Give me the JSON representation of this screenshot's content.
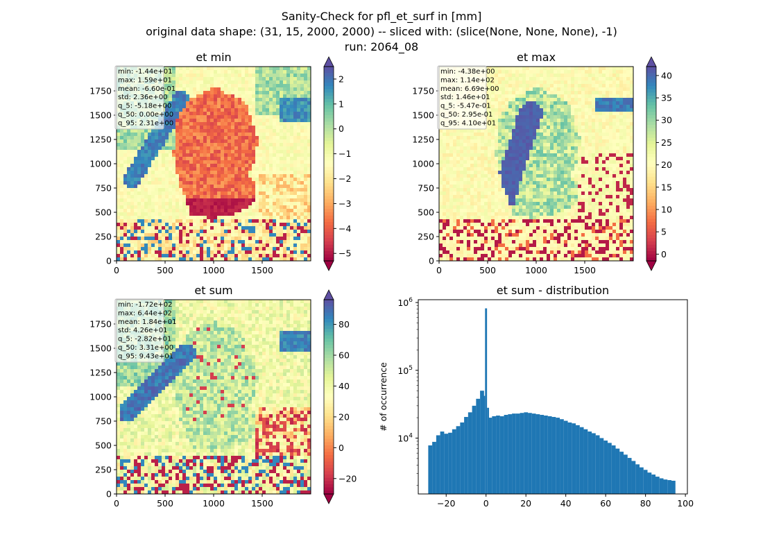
{
  "figure": {
    "title_lines": [
      "Sanity-Check for pfl_et_surf in [mm]",
      "original data shape: (31, 15, 2000, 2000) -- sliced with: (slice(None, None, None), -1)",
      "run: 2064_08"
    ]
  },
  "chart_data": [
    {
      "type": "heatmap",
      "title": "et min",
      "xlim": [
        0,
        2000
      ],
      "ylim": [
        0,
        2000
      ],
      "x_ticks": [
        0,
        500,
        1000,
        1500
      ],
      "y_ticks": [
        0,
        250,
        500,
        750,
        1000,
        1250,
        1500,
        1750
      ],
      "colorbar": {
        "vmin": -5.3,
        "vmax": 2.5,
        "ticks": [
          2,
          1,
          0,
          -1,
          -2,
          -3,
          -4,
          -5
        ],
        "tick_labels": [
          "2",
          "1",
          "0",
          "−1",
          "−2",
          "−3",
          "−4",
          "−5"
        ],
        "extend": "both",
        "colormap": "Spectral"
      },
      "stats": [
        "min: -1.44e+01",
        "max: 1.59e+01",
        "mean: -6.60e-01",
        "std: 2.36e+00",
        "q_5: -5.18e+00",
        "q_50: 0.00e+00",
        "q_95: 2.31e+00"
      ]
    },
    {
      "type": "heatmap",
      "title": "et max",
      "xlim": [
        0,
        2000
      ],
      "ylim": [
        0,
        2000
      ],
      "x_ticks": [
        0,
        500,
        1000,
        1500
      ],
      "y_ticks": [
        0,
        250,
        500,
        750,
        1000,
        1250,
        1500,
        1750
      ],
      "colorbar": {
        "vmin": -1.5,
        "vmax": 42,
        "ticks": [
          40,
          35,
          30,
          25,
          20,
          15,
          10,
          5,
          0
        ],
        "tick_labels": [
          "40",
          "35",
          "30",
          "25",
          "20",
          "15",
          "10",
          "5",
          "0"
        ],
        "extend": "both",
        "colormap": "Spectral"
      },
      "stats": [
        "min: -4.38e+00",
        "max: 1.14e+02",
        "mean: 6.69e+00",
        "std: 1.46e+01",
        "q_5: -5.47e-01",
        "q_50: 2.95e-01",
        "q_95: 4.10e+01"
      ]
    },
    {
      "type": "heatmap",
      "title": "et sum",
      "xlim": [
        0,
        2000
      ],
      "ylim": [
        0,
        2000
      ],
      "x_ticks": [
        0,
        500,
        1000,
        1500
      ],
      "y_ticks": [
        0,
        250,
        500,
        750,
        1000,
        1250,
        1500,
        1750
      ],
      "colorbar": {
        "vmin": -30,
        "vmax": 96,
        "ticks": [
          80,
          60,
          40,
          20,
          0,
          -20
        ],
        "tick_labels": [
          "80",
          "60",
          "40",
          "20",
          "0",
          "−20"
        ],
        "extend": "both",
        "colormap": "Spectral"
      },
      "stats": [
        "min: -1.72e+02",
        "max: 6.44e+02",
        "mean: 1.84e+01",
        "std: 4.26e+01",
        "q_5: -2.82e+01",
        "q_50: 3.31e+00",
        "q_95: 9.43e+01"
      ]
    },
    {
      "type": "bar",
      "title": "et sum - distribution",
      "ylabel": "# of occurrence",
      "y_scale": "log",
      "xlim": [
        -34,
        101
      ],
      "ylim": [
        1500,
        1100000
      ],
      "x_ticks": [
        -20,
        0,
        20,
        40,
        60,
        80,
        100
      ],
      "x_tick_labels": [
        "−20",
        "0",
        "20",
        "40",
        "60",
        "80",
        "100"
      ],
      "y_ticks": [
        10000,
        100000,
        1000000
      ],
      "y_tick_labels": [
        "10^4",
        "10^5",
        "10^6"
      ],
      "bar_color": "#1f77b4",
      "bins": [
        {
          "x": -28,
          "count": 7800
        },
        {
          "x": -26,
          "count": 8800
        },
        {
          "x": -24,
          "count": 11000
        },
        {
          "x": -22,
          "count": 12500
        },
        {
          "x": -20,
          "count": 11600
        },
        {
          "x": -18,
          "count": 12000
        },
        {
          "x": -16,
          "count": 13500
        },
        {
          "x": -14,
          "count": 15000
        },
        {
          "x": -12,
          "count": 17000
        },
        {
          "x": -10,
          "count": 20500
        },
        {
          "x": -8,
          "count": 24000
        },
        {
          "x": -6,
          "count": 30000
        },
        {
          "x": -4,
          "count": 38000
        },
        {
          "x": -2,
          "count": 50000
        },
        {
          "x": -1,
          "count": 42000
        },
        {
          "x": 0,
          "count": 820000
        },
        {
          "x": 1,
          "count": 28000
        },
        {
          "x": 2,
          "count": 20000
        },
        {
          "x": 4,
          "count": 21000
        },
        {
          "x": 6,
          "count": 21500
        },
        {
          "x": 8,
          "count": 21000
        },
        {
          "x": 10,
          "count": 22000
        },
        {
          "x": 12,
          "count": 22500
        },
        {
          "x": 14,
          "count": 23000
        },
        {
          "x": 16,
          "count": 23000
        },
        {
          "x": 18,
          "count": 23500
        },
        {
          "x": 20,
          "count": 24000
        },
        {
          "x": 22,
          "count": 23500
        },
        {
          "x": 24,
          "count": 23000
        },
        {
          "x": 26,
          "count": 22500
        },
        {
          "x": 28,
          "count": 22000
        },
        {
          "x": 30,
          "count": 21500
        },
        {
          "x": 32,
          "count": 21000
        },
        {
          "x": 34,
          "count": 20500
        },
        {
          "x": 36,
          "count": 20000
        },
        {
          "x": 38,
          "count": 19000
        },
        {
          "x": 40,
          "count": 18000
        },
        {
          "x": 42,
          "count": 17000
        },
        {
          "x": 44,
          "count": 16500
        },
        {
          "x": 46,
          "count": 15500
        },
        {
          "x": 48,
          "count": 14500
        },
        {
          "x": 50,
          "count": 13500
        },
        {
          "x": 52,
          "count": 12500
        },
        {
          "x": 54,
          "count": 11800
        },
        {
          "x": 56,
          "count": 11000
        },
        {
          "x": 58,
          "count": 10000
        },
        {
          "x": 60,
          "count": 9200
        },
        {
          "x": 62,
          "count": 8500
        },
        {
          "x": 64,
          "count": 7800
        },
        {
          "x": 66,
          "count": 7000
        },
        {
          "x": 68,
          "count": 6300
        },
        {
          "x": 70,
          "count": 5700
        },
        {
          "x": 72,
          "count": 5100
        },
        {
          "x": 74,
          "count": 4600
        },
        {
          "x": 76,
          "count": 4100
        },
        {
          "x": 78,
          "count": 3700
        },
        {
          "x": 80,
          "count": 3400
        },
        {
          "x": 82,
          "count": 3100
        },
        {
          "x": 84,
          "count": 2900
        },
        {
          "x": 86,
          "count": 2700
        },
        {
          "x": 88,
          "count": 2550
        },
        {
          "x": 90,
          "count": 2450
        },
        {
          "x": 92,
          "count": 2400
        },
        {
          "x": 94,
          "count": 2350
        }
      ],
      "bin_width": 2
    }
  ]
}
